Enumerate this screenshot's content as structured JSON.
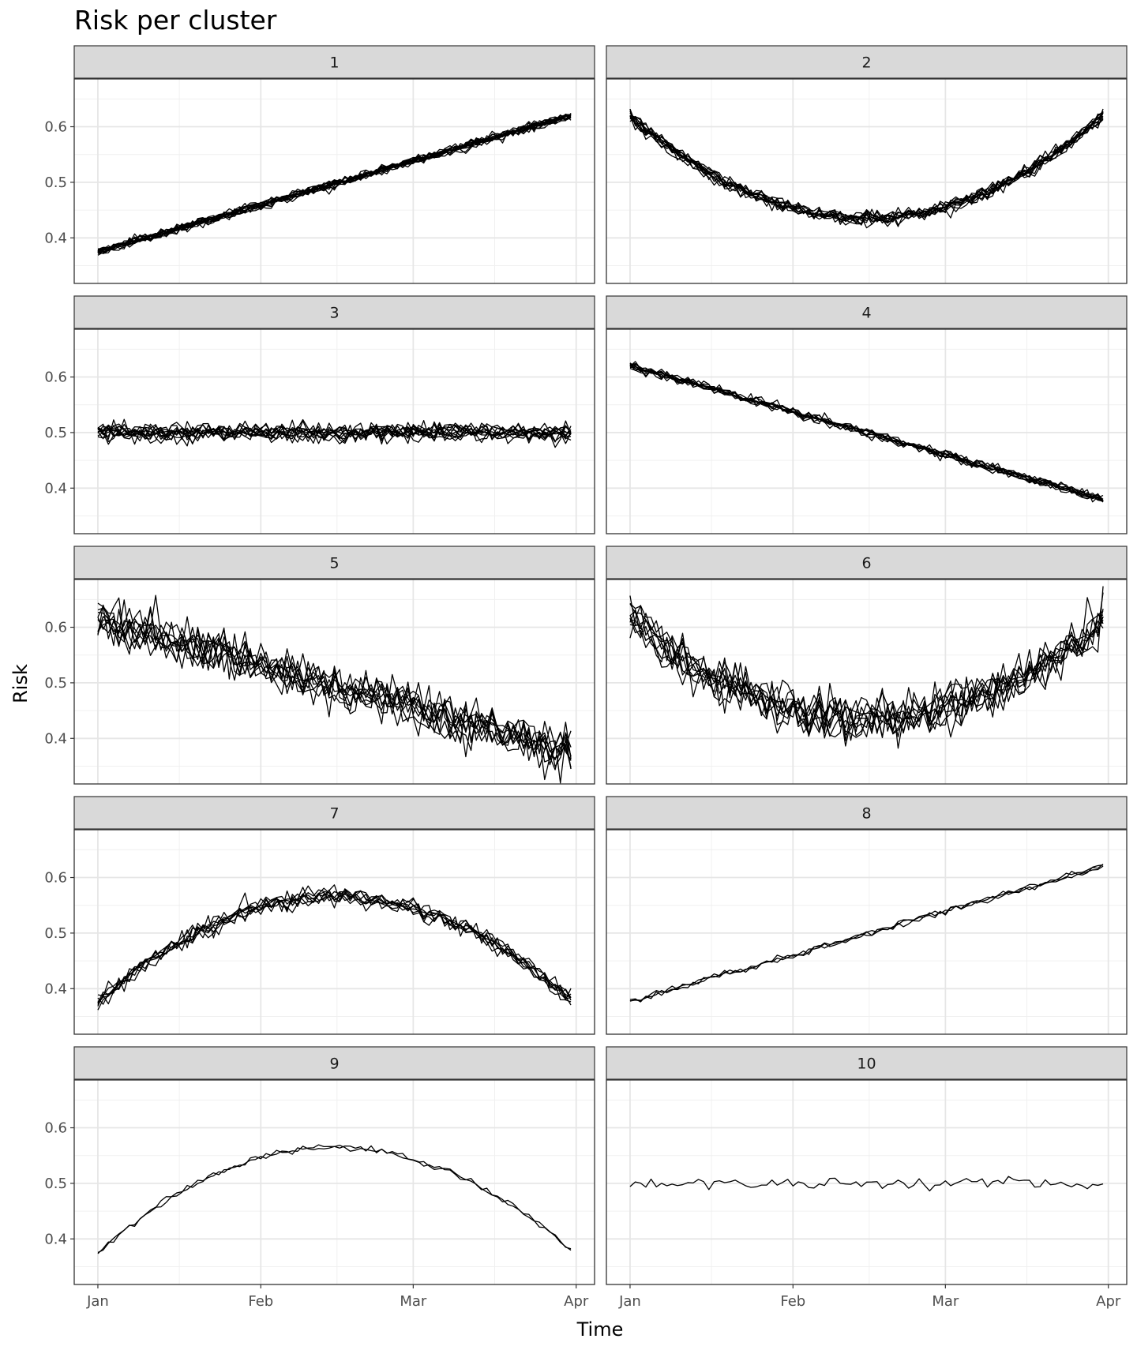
{
  "chart_data": {
    "type": "line",
    "title": "Risk per cluster",
    "xlabel": "Time",
    "ylabel": "Risk",
    "x_ticks": [
      "Jan",
      "Feb",
      "Mar",
      "Apr"
    ],
    "x_tick_days": [
      0,
      31,
      60,
      91
    ],
    "x_range_days": [
      -4.5,
      94.5
    ],
    "y_ticks": [
      0.4,
      0.5,
      0.6
    ],
    "ylim": [
      0.318,
      0.686
    ],
    "grid": true,
    "facet_layout": "5 rows x 2 columns",
    "series_per_cluster_day_step": 1,
    "clusters": [
      {
        "label": "1",
        "pattern": "linear",
        "start": 0.375,
        "end": 0.62,
        "noise": 0.004,
        "lines": 15
      },
      {
        "label": "2",
        "pattern": "u-shape",
        "start": 0.62,
        "end": 0.62,
        "extreme": 0.435,
        "extreme_day": 45,
        "noise": 0.006,
        "lines": 12
      },
      {
        "label": "3",
        "pattern": "flat",
        "start": 0.5,
        "end": 0.5,
        "noise": 0.008,
        "lines": 12
      },
      {
        "label": "4",
        "pattern": "linear",
        "start": 0.62,
        "end": 0.38,
        "noise": 0.004,
        "lines": 10
      },
      {
        "label": "5",
        "pattern": "linear",
        "start": 0.615,
        "end": 0.375,
        "noise": 0.02,
        "lines": 10
      },
      {
        "label": "6",
        "pattern": "u-shape",
        "start": 0.615,
        "end": 0.61,
        "extreme": 0.435,
        "extreme_day": 45,
        "noise": 0.02,
        "lines": 10
      },
      {
        "label": "7",
        "pattern": "arch",
        "start": 0.375,
        "end": 0.38,
        "extreme": 0.565,
        "extreme_day": 45,
        "noise": 0.008,
        "lines": 8
      },
      {
        "label": "8",
        "pattern": "linear",
        "start": 0.377,
        "end": 0.62,
        "noise": 0.003,
        "lines": 3
      },
      {
        "label": "9",
        "pattern": "arch",
        "start": 0.375,
        "end": 0.38,
        "extreme": 0.565,
        "extreme_day": 45,
        "noise": 0.003,
        "lines": 2
      },
      {
        "label": "10",
        "pattern": "flat",
        "start": 0.5,
        "end": 0.5,
        "noise": 0.005,
        "lines": 1
      }
    ]
  }
}
